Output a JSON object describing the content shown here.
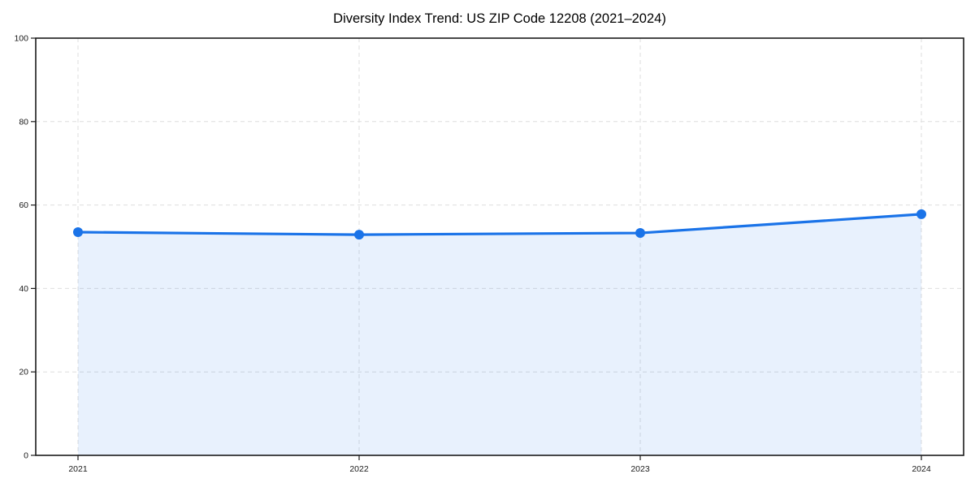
{
  "chart_data": {
    "type": "area",
    "title": "Diversity Index Trend: US ZIP Code 12208 (2021–2024)",
    "categories": [
      "2021",
      "2022",
      "2023",
      "2024"
    ],
    "series": [
      {
        "name": "Diversity Index",
        "values": [
          53.5,
          52.9,
          53.3,
          57.8
        ]
      }
    ],
    "xlabel": "",
    "ylabel": "",
    "ylim": [
      0,
      100
    ],
    "yticks": [
      0,
      20,
      40,
      60,
      80,
      100
    ],
    "grid": "dashed both axes",
    "legend_position": "none",
    "colors": {
      "line": "#1a73e8",
      "marker": "#1a73e8",
      "area_fill": "rgba(26,115,232,0.10)",
      "gridline": "#dedede",
      "spine": "#1a1a1a",
      "tick_label": "#1a1a1a",
      "background": "#ffffff"
    }
  }
}
